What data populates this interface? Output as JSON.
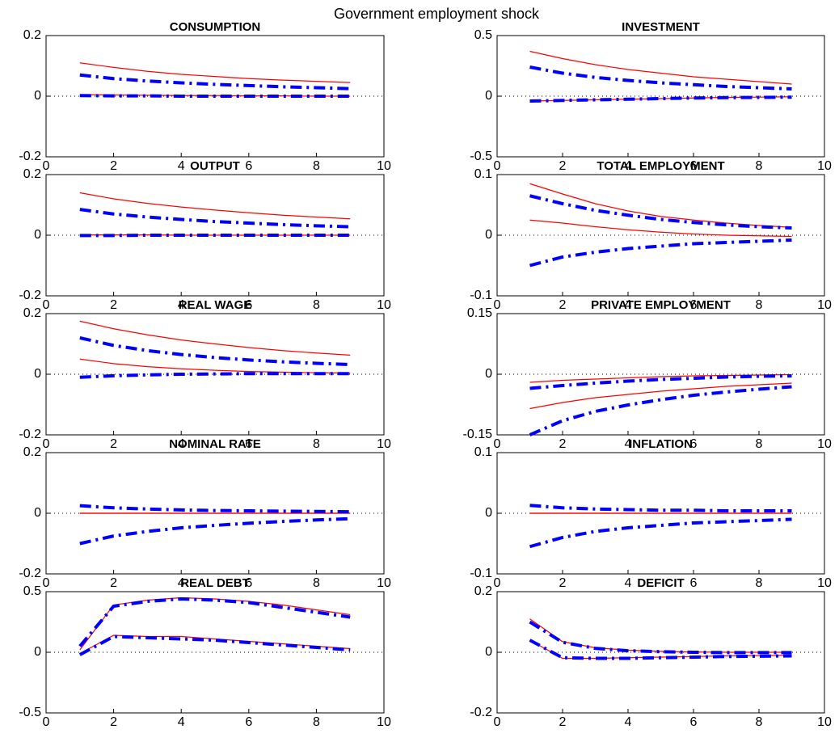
{
  "title": "Government employment shock",
  "chart_data": [
    {
      "type": "line",
      "title": "CONSUMPTION",
      "x": [
        1,
        2,
        3,
        4,
        5,
        6,
        7,
        8,
        9
      ],
      "xlim": [
        0,
        10
      ],
      "xticks": [
        0,
        2,
        4,
        6,
        8,
        10
      ],
      "ylim": [
        -0.2,
        0.2
      ],
      "yticks": [
        -0.2,
        0,
        0.2
      ],
      "zero_line": true,
      "series": [
        {
          "color": "#ff0000",
          "style": "solid",
          "values": [
            0.11,
            0.095,
            0.082,
            0.072,
            0.065,
            0.058,
            0.053,
            0.049,
            0.045
          ]
        },
        {
          "color": "#ff0000",
          "style": "solid",
          "values": [
            0.005,
            0.004,
            0.003,
            0.002,
            0.002,
            0.001,
            0.001,
            0.0,
            0.0
          ]
        },
        {
          "color": "#0000ff",
          "style": "dash-dot",
          "values": [
            0.07,
            0.058,
            0.05,
            0.044,
            0.039,
            0.035,
            0.031,
            0.028,
            0.025
          ]
        },
        {
          "color": "#0000ff",
          "style": "dash-dot",
          "values": [
            0.002,
            0.001,
            0.001,
            0.0,
            0.0,
            0.0,
            0.0,
            0.0,
            0.0
          ]
        }
      ]
    },
    {
      "type": "line",
      "title": "INVESTMENT",
      "x": [
        1,
        2,
        3,
        4,
        5,
        6,
        7,
        8,
        9
      ],
      "xlim": [
        0,
        10
      ],
      "xticks": [
        0,
        2,
        4,
        6,
        8,
        10
      ],
      "ylim": [
        -0.5,
        0.5
      ],
      "yticks": [
        -0.5,
        0,
        0.5
      ],
      "zero_line": true,
      "series": [
        {
          "color": "#ff0000",
          "style": "solid",
          "values": [
            0.37,
            0.31,
            0.26,
            0.22,
            0.19,
            0.16,
            0.14,
            0.12,
            0.1
          ]
        },
        {
          "color": "#ff0000",
          "style": "solid",
          "values": [
            -0.04,
            -0.035,
            -0.03,
            -0.025,
            -0.02,
            -0.015,
            -0.01,
            -0.008,
            -0.005
          ]
        },
        {
          "color": "#0000ff",
          "style": "dash-dot",
          "values": [
            0.24,
            0.19,
            0.155,
            0.13,
            0.11,
            0.095,
            0.08,
            0.07,
            0.06
          ]
        },
        {
          "color": "#0000ff",
          "style": "dash-dot",
          "values": [
            -0.04,
            -0.035,
            -0.03,
            -0.025,
            -0.02,
            -0.015,
            -0.012,
            -0.01,
            -0.008
          ]
        }
      ]
    },
    {
      "type": "line",
      "title": "OUTPUT",
      "x": [
        1,
        2,
        3,
        4,
        5,
        6,
        7,
        8,
        9
      ],
      "xlim": [
        0,
        10
      ],
      "xticks": [
        0,
        2,
        4,
        6,
        8,
        10
      ],
      "ylim": [
        -0.2,
        0.2
      ],
      "yticks": [
        -0.2,
        0,
        0.2
      ],
      "zero_line": true,
      "series": [
        {
          "color": "#ff0000",
          "style": "solid",
          "values": [
            0.14,
            0.12,
            0.105,
            0.093,
            0.083,
            0.074,
            0.066,
            0.06,
            0.054
          ]
        },
        {
          "color": "#ff0000",
          "style": "solid",
          "values": [
            0.001,
            0.001,
            0.001,
            0.0,
            0.0,
            0.0,
            0.0,
            0.0,
            0.0
          ]
        },
        {
          "color": "#0000ff",
          "style": "dash-dot",
          "values": [
            0.085,
            0.07,
            0.06,
            0.052,
            0.045,
            0.04,
            0.035,
            0.031,
            0.028
          ]
        },
        {
          "color": "#0000ff",
          "style": "dash-dot",
          "values": [
            -0.001,
            -0.001,
            0.0,
            0.0,
            0.0,
            0.0,
            0.0,
            0.0,
            0.0
          ]
        }
      ]
    },
    {
      "type": "line",
      "title": "TOTAL EMPLOYMENT",
      "x": [
        1,
        2,
        3,
        4,
        5,
        6,
        7,
        8,
        9
      ],
      "xlim": [
        0,
        10
      ],
      "xticks": [
        0,
        2,
        4,
        6,
        8,
        10
      ],
      "ylim": [
        -0.1,
        0.1
      ],
      "yticks": [
        -0.1,
        0,
        0.1
      ],
      "zero_line": true,
      "series": [
        {
          "color": "#ff0000",
          "style": "solid",
          "values": [
            0.085,
            0.068,
            0.052,
            0.04,
            0.031,
            0.025,
            0.02,
            0.016,
            0.013
          ]
        },
        {
          "color": "#ff0000",
          "style": "solid",
          "values": [
            0.025,
            0.02,
            0.014,
            0.009,
            0.005,
            0.002,
            0.0,
            -0.001,
            -0.002
          ]
        },
        {
          "color": "#0000ff",
          "style": "dash-dot",
          "values": [
            0.065,
            0.052,
            0.041,
            0.033,
            0.026,
            0.021,
            0.017,
            0.014,
            0.012
          ]
        },
        {
          "color": "#0000ff",
          "style": "dash-dot",
          "values": [
            -0.05,
            -0.036,
            -0.028,
            -0.022,
            -0.018,
            -0.014,
            -0.012,
            -0.01,
            -0.008
          ]
        }
      ]
    },
    {
      "type": "line",
      "title": "REAL WAGE",
      "x": [
        1,
        2,
        3,
        4,
        5,
        6,
        7,
        8,
        9
      ],
      "xlim": [
        0,
        10
      ],
      "xticks": [
        0,
        2,
        4,
        6,
        8,
        10
      ],
      "ylim": [
        -0.2,
        0.2
      ],
      "yticks": [
        -0.2,
        0,
        0.2
      ],
      "zero_line": true,
      "series": [
        {
          "color": "#ff0000",
          "style": "solid",
          "values": [
            0.175,
            0.15,
            0.13,
            0.113,
            0.1,
            0.088,
            0.078,
            0.07,
            0.063
          ]
        },
        {
          "color": "#ff0000",
          "style": "solid",
          "values": [
            0.05,
            0.035,
            0.025,
            0.018,
            0.013,
            0.009,
            0.007,
            0.005,
            0.004
          ]
        },
        {
          "color": "#0000ff",
          "style": "dash-dot",
          "values": [
            0.12,
            0.095,
            0.078,
            0.065,
            0.055,
            0.047,
            0.041,
            0.036,
            0.032
          ]
        },
        {
          "color": "#0000ff",
          "style": "dash-dot",
          "values": [
            -0.01,
            -0.005,
            -0.002,
            0.0,
            0.001,
            0.002,
            0.002,
            0.002,
            0.002
          ]
        }
      ]
    },
    {
      "type": "line",
      "title": "PRIVATE EMPLOYMENT",
      "x": [
        1,
        2,
        3,
        4,
        5,
        6,
        7,
        8,
        9
      ],
      "xlim": [
        0,
        10
      ],
      "xticks": [
        0,
        2,
        4,
        6,
        8,
        10
      ],
      "ylim": [
        -0.15,
        0.15
      ],
      "yticks": [
        -0.15,
        0,
        0.15
      ],
      "zero_line": true,
      "series": [
        {
          "color": "#ff0000",
          "style": "solid",
          "values": [
            -0.02,
            -0.015,
            -0.012,
            -0.009,
            -0.006,
            -0.004,
            -0.003,
            -0.002,
            -0.001
          ]
        },
        {
          "color": "#ff0000",
          "style": "solid",
          "values": [
            -0.085,
            -0.07,
            -0.058,
            -0.05,
            -0.042,
            -0.036,
            -0.03,
            -0.026,
            -0.022
          ]
        },
        {
          "color": "#0000ff",
          "style": "dash-dot",
          "values": [
            -0.035,
            -0.028,
            -0.022,
            -0.017,
            -0.013,
            -0.01,
            -0.007,
            -0.005,
            -0.004
          ]
        },
        {
          "color": "#0000ff",
          "style": "dash-dot",
          "values": [
            -0.15,
            -0.115,
            -0.092,
            -0.076,
            -0.063,
            -0.052,
            -0.044,
            -0.037,
            -0.031
          ]
        }
      ]
    },
    {
      "type": "line",
      "title": "NOMINAL RATE",
      "x": [
        1,
        2,
        3,
        4,
        5,
        6,
        7,
        8,
        9
      ],
      "xlim": [
        0,
        10
      ],
      "xticks": [
        0,
        2,
        4,
        6,
        8,
        10
      ],
      "ylim": [
        -0.2,
        0.2
      ],
      "yticks": [
        -0.2,
        0,
        0.2
      ],
      "zero_line": true,
      "series": [
        {
          "color": "#ff0000",
          "style": "solid",
          "values": [
            0.0,
            0.0,
            0.0,
            0.0,
            0.0,
            0.0,
            0.0,
            0.0,
            0.0
          ]
        },
        {
          "color": "#ff0000",
          "style": "solid",
          "values": [
            0.0,
            0.0,
            0.0,
            0.0,
            0.0,
            0.0,
            0.0,
            0.0,
            0.0
          ]
        },
        {
          "color": "#0000ff",
          "style": "dash-dot",
          "values": [
            0.025,
            0.018,
            0.014,
            0.011,
            0.009,
            0.008,
            0.007,
            0.006,
            0.005
          ]
        },
        {
          "color": "#0000ff",
          "style": "dash-dot",
          "values": [
            -0.1,
            -0.075,
            -0.06,
            -0.048,
            -0.04,
            -0.033,
            -0.027,
            -0.022,
            -0.018
          ]
        }
      ]
    },
    {
      "type": "line",
      "title": "INFLATION",
      "x": [
        1,
        2,
        3,
        4,
        5,
        6,
        7,
        8,
        9
      ],
      "xlim": [
        0,
        10
      ],
      "xticks": [
        0,
        2,
        4,
        6,
        8,
        10
      ],
      "ylim": [
        -0.1,
        0.1
      ],
      "yticks": [
        -0.1,
        0,
        0.1
      ],
      "zero_line": true,
      "series": [
        {
          "color": "#ff0000",
          "style": "solid",
          "values": [
            0.0,
            0.0,
            0.0,
            0.0,
            0.0,
            0.0,
            0.0,
            0.0,
            0.0
          ]
        },
        {
          "color": "#ff0000",
          "style": "solid",
          "values": [
            0.0,
            0.0,
            0.0,
            0.0,
            0.0,
            0.0,
            0.0,
            0.0,
            0.0
          ]
        },
        {
          "color": "#0000ff",
          "style": "dash-dot",
          "values": [
            0.013,
            0.009,
            0.007,
            0.006,
            0.005,
            0.005,
            0.004,
            0.004,
            0.004
          ]
        },
        {
          "color": "#0000ff",
          "style": "dash-dot",
          "values": [
            -0.055,
            -0.04,
            -0.03,
            -0.024,
            -0.02,
            -0.016,
            -0.014,
            -0.012,
            -0.01
          ]
        }
      ]
    },
    {
      "type": "line",
      "title": "REAL DEBT",
      "x": [
        1,
        2,
        3,
        4,
        5,
        6,
        7,
        8,
        9
      ],
      "xlim": [
        0,
        10
      ],
      "xticks": [
        0,
        2,
        4,
        6,
        8,
        10
      ],
      "ylim": [
        -0.5,
        0.5
      ],
      "yticks": [
        -0.5,
        0,
        0.5
      ],
      "zero_line": true,
      "series": [
        {
          "color": "#ff0000",
          "style": "solid",
          "values": [
            0.02,
            0.39,
            0.43,
            0.45,
            0.44,
            0.42,
            0.39,
            0.35,
            0.31
          ]
        },
        {
          "color": "#ff0000",
          "style": "solid",
          "values": [
            -0.01,
            0.14,
            0.13,
            0.13,
            0.11,
            0.09,
            0.07,
            0.05,
            0.03
          ]
        },
        {
          "color": "#0000ff",
          "style": "dash-dot",
          "values": [
            0.05,
            0.38,
            0.42,
            0.44,
            0.43,
            0.41,
            0.37,
            0.33,
            0.29
          ]
        },
        {
          "color": "#0000ff",
          "style": "dash-dot",
          "values": [
            -0.02,
            0.13,
            0.12,
            0.11,
            0.1,
            0.08,
            0.06,
            0.04,
            0.02
          ]
        }
      ]
    },
    {
      "type": "line",
      "title": "DEFICIT",
      "x": [
        1,
        2,
        3,
        4,
        5,
        6,
        7,
        8,
        9
      ],
      "xlim": [
        0,
        10
      ],
      "xticks": [
        0,
        2,
        4,
        6,
        8,
        10
      ],
      "ylim": [
        -0.2,
        0.2
      ],
      "yticks": [
        -0.2,
        0,
        0.2
      ],
      "zero_line": true,
      "series": [
        {
          "color": "#ff0000",
          "style": "solid",
          "values": [
            0.11,
            0.035,
            0.015,
            0.007,
            0.003,
            0.001,
            0.0,
            0.0,
            0.0
          ]
        },
        {
          "color": "#ff0000",
          "style": "solid",
          "values": [
            0.04,
            -0.02,
            -0.02,
            -0.018,
            -0.016,
            -0.014,
            -0.012,
            -0.011,
            -0.01
          ]
        },
        {
          "color": "#0000ff",
          "style": "dash-dot",
          "values": [
            0.1,
            0.033,
            0.013,
            0.005,
            0.002,
            0.0,
            -0.001,
            -0.001,
            -0.001
          ]
        },
        {
          "color": "#0000ff",
          "style": "dash-dot",
          "values": [
            0.04,
            -0.018,
            -0.02,
            -0.02,
            -0.018,
            -0.016,
            -0.014,
            -0.013,
            -0.012
          ]
        }
      ]
    }
  ]
}
